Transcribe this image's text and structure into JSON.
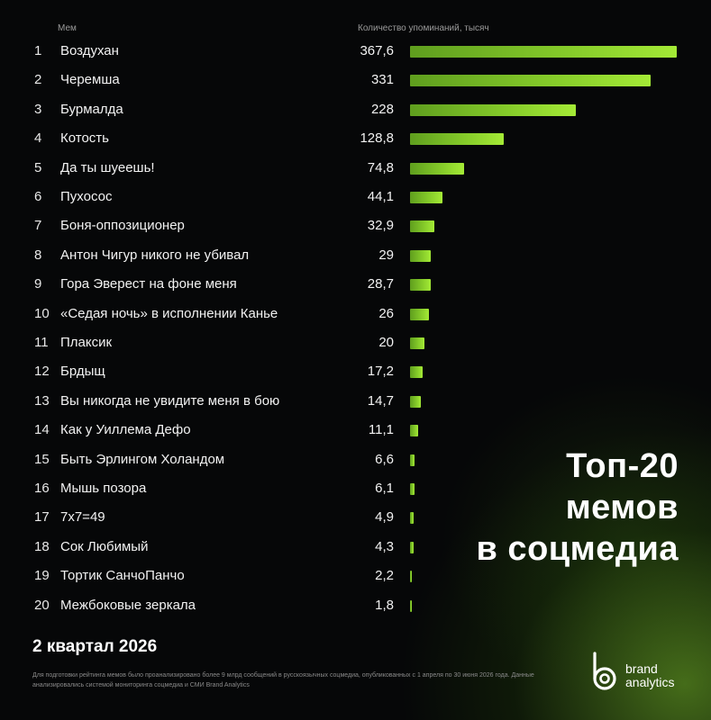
{
  "headers": {
    "meme": "Мем",
    "count": "Количество упоминаний, тысяч"
  },
  "chart_data": {
    "type": "bar",
    "orientation": "horizontal",
    "xlabel": "Количество упоминаний, тысяч",
    "ylabel": "Мем",
    "xlim": [
      0,
      367.6
    ],
    "grid": false,
    "legend": "none",
    "bar_color": "#86cc2a",
    "rows": [
      {
        "rank": "1",
        "name": "Воздухан",
        "value": 367.6,
        "label": "367,6"
      },
      {
        "rank": "2",
        "name": "Черемша",
        "value": 331,
        "label": "331"
      },
      {
        "rank": "3",
        "name": "Бурмалда",
        "value": 228,
        "label": "228"
      },
      {
        "rank": "4",
        "name": "Котость",
        "value": 128.8,
        "label": "128,8"
      },
      {
        "rank": "5",
        "name": "Да ты шуеешь!",
        "value": 74.8,
        "label": "74,8"
      },
      {
        "rank": "6",
        "name": "Пухосос",
        "value": 44.1,
        "label": "44,1"
      },
      {
        "rank": "7",
        "name": "Боня-оппозиционер",
        "value": 32.9,
        "label": "32,9"
      },
      {
        "rank": "8",
        "name": "Антон Чигур никого не убивал",
        "value": 29,
        "label": "29"
      },
      {
        "rank": "9",
        "name": "Гора Эверест на фоне меня",
        "value": 28.7,
        "label": "28,7"
      },
      {
        "rank": "10",
        "name": "«Седая ночь» в исполнении Канье",
        "value": 26,
        "label": "26"
      },
      {
        "rank": "11",
        "name": "Плаксик",
        "value": 20,
        "label": "20"
      },
      {
        "rank": "12",
        "name": "Брдыщ",
        "value": 17.2,
        "label": "17,2"
      },
      {
        "rank": "13",
        "name": "Вы никогда не увидите меня в бою",
        "value": 14.7,
        "label": "14,7"
      },
      {
        "rank": "14",
        "name": "Как у Уиллема Дефо",
        "value": 11.1,
        "label": "11,1"
      },
      {
        "rank": "15",
        "name": "Быть Эрлингом Холандом",
        "value": 6.6,
        "label": "6,6"
      },
      {
        "rank": "16",
        "name": "Мышь позора",
        "value": 6.1,
        "label": "6,1"
      },
      {
        "rank": "17",
        "name": "7x7=49",
        "value": 4.9,
        "label": "4,9"
      },
      {
        "rank": "18",
        "name": "Сок Любимый",
        "value": 4.3,
        "label": "4,3"
      },
      {
        "rank": "19",
        "name": "Тортик СанчоПанчо",
        "value": 2.2,
        "label": "2,2"
      },
      {
        "rank": "20",
        "name": "Межбоковые зеркала",
        "value": 1.8,
        "label": "1,8"
      }
    ]
  },
  "title_lines": [
    "Топ-20",
    "мемов",
    "в соцмедиа"
  ],
  "period": "2 квартал 2026",
  "footnote": "Для подготовки рейтинга мемов было проанализировано более 9 млрд сообщений в русскоязычных соцмедиа, опубликованных с 1 апреля по 30 июня 2026 года. Данные анализировались системой мониторинга соцмедиа и СМИ Brand Analytics",
  "logo": {
    "line1": "brand",
    "line2": "analytics",
    "icon": "brand-analytics-logo-icon"
  },
  "colors": {
    "background": "#060708",
    "accent": "#86cc2a",
    "text": "#ffffff",
    "muted": "#9a9a9a"
  }
}
